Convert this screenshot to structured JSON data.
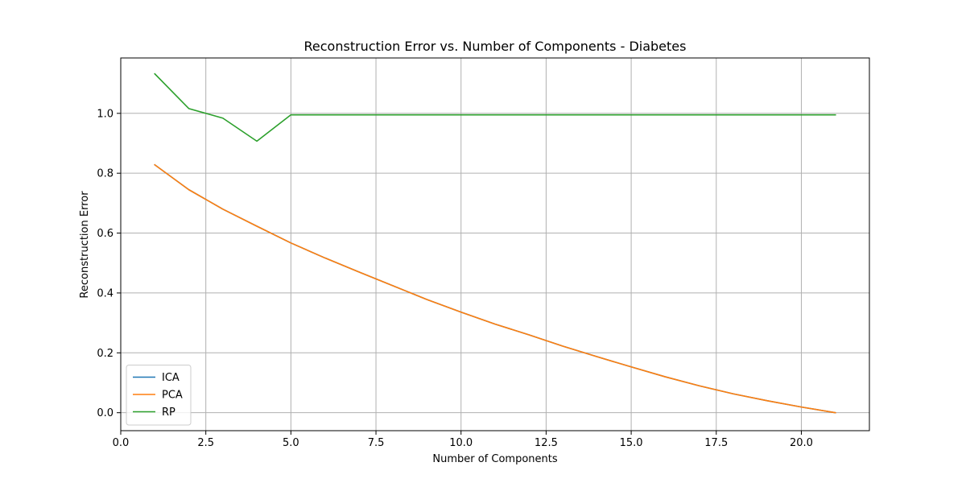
{
  "chart_data": {
    "type": "line",
    "title": "Reconstruction Error vs. Number of Components - Diabetes",
    "xlabel": "Number of Components",
    "ylabel": "Reconstruction Error",
    "xlim": [
      0,
      22
    ],
    "ylim": [
      -0.06,
      1.185
    ],
    "xticks": [
      0,
      2.5,
      5,
      7.5,
      10,
      12.5,
      15,
      17.5,
      20
    ],
    "xtick_labels": [
      "0.0",
      "2.5",
      "5.0",
      "7.5",
      "10.0",
      "12.5",
      "15.0",
      "17.5",
      "20.0"
    ],
    "yticks": [
      0,
      0.2,
      0.4,
      0.6,
      0.8,
      1.0
    ],
    "ytick_labels": [
      "0.0",
      "0.2",
      "0.4",
      "0.6",
      "0.8",
      "1.0"
    ],
    "grid": true,
    "legend_position": "lower-left",
    "x": [
      1,
      2,
      3,
      4,
      5,
      6,
      7,
      8,
      9,
      10,
      11,
      12,
      13,
      14,
      15,
      16,
      17,
      18,
      19,
      20,
      21
    ],
    "series": [
      {
        "name": "ICA",
        "color": "#1f77b4",
        "values": [
          0.828,
          0.745,
          0.68,
          0.623,
          0.567,
          0.517,
          0.47,
          0.424,
          0.378,
          0.336,
          0.296,
          0.26,
          0.222,
          0.187,
          0.153,
          0.12,
          0.09,
          0.063,
          0.04,
          0.019,
          0.0
        ]
      },
      {
        "name": "PCA",
        "color": "#ff7f0e",
        "values": [
          0.828,
          0.745,
          0.68,
          0.623,
          0.567,
          0.517,
          0.47,
          0.424,
          0.378,
          0.336,
          0.296,
          0.26,
          0.222,
          0.187,
          0.153,
          0.12,
          0.09,
          0.063,
          0.04,
          0.019,
          0.0
        ]
      },
      {
        "name": "RP",
        "color": "#2ca02c",
        "values": [
          1.132,
          1.016,
          0.984,
          0.907,
          0.995,
          0.995,
          0.995,
          0.995,
          0.995,
          0.995,
          0.995,
          0.995,
          0.995,
          0.995,
          0.995,
          0.995,
          0.995,
          0.995,
          0.995,
          0.995,
          0.995
        ]
      }
    ]
  }
}
